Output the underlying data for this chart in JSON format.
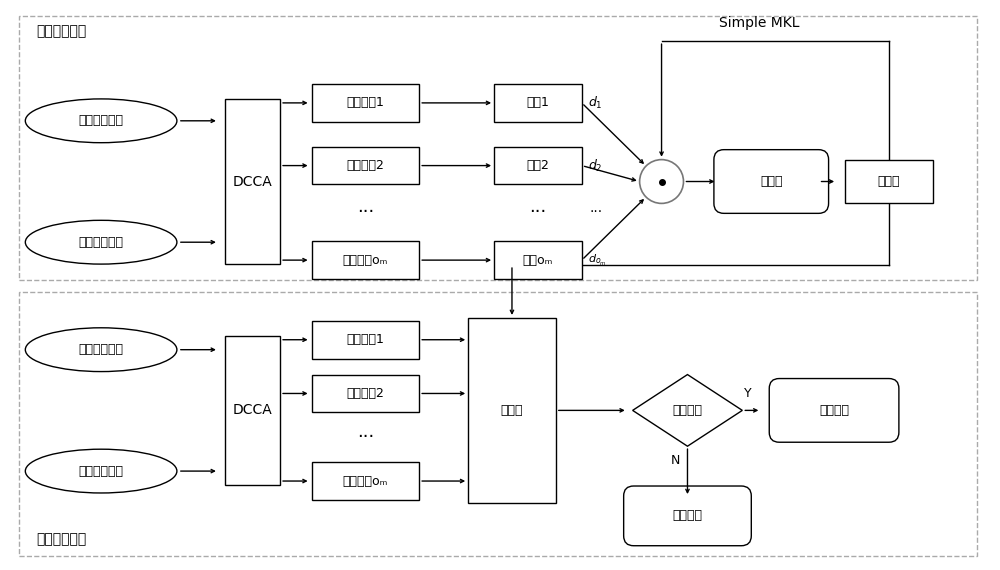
{
  "title_top": "离线训练阶段",
  "title_bottom": "在线鉴别阶段",
  "simple_mkl_label": "Simple MKL",
  "bg_color": "#ffffff",
  "top_panel": {
    "inputs": [
      "雷达训练特征",
      "红外训练特征"
    ],
    "dcca": "DCCA",
    "features": [
      "特征分量1",
      "特征分量2",
      "...",
      "特征分量oₘ"
    ],
    "kernels": [
      "基核1",
      "基核2",
      "...",
      "基核oₘ"
    ],
    "d_labels": [
      "d_1",
      "d_2",
      "d_{o_m}"
    ],
    "synth": "合成核",
    "classifier": "分类器"
  },
  "bottom_panel": {
    "inputs": [
      "雷达测试特征",
      "红外测试特征"
    ],
    "dcca": "DCCA",
    "features": [
      "特征分量1",
      "特征分量2",
      "...",
      "特征分量oₘ"
    ],
    "classifier": "分类器",
    "diamond": "拒判判定",
    "yes_label": "Y",
    "no_label": "N",
    "yes_target": "库内目标",
    "no_target": "库外目标"
  }
}
